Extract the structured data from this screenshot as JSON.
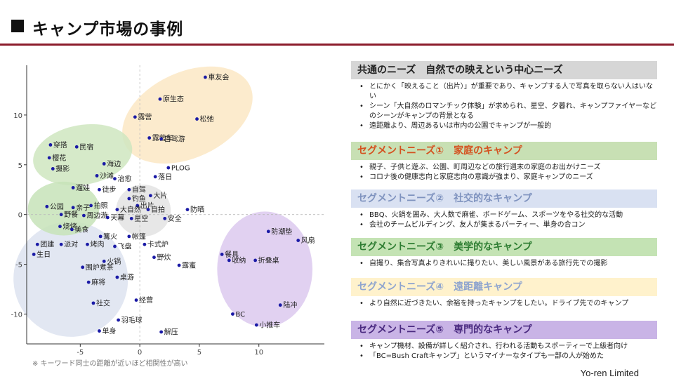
{
  "title": "キャンプ市場の事例",
  "note": "※ キーワード同士の距離が近いほど相関性が高い",
  "footer": "Yo-ren Limited",
  "colors": {
    "accent": "#8b1c2c",
    "dot": "#1a1aa6"
  },
  "chart_data": {
    "type": "scatter",
    "xlim": [
      -9.5,
      15.5
    ],
    "ylim": [
      -13,
      15
    ],
    "x_ticks": [
      -5,
      0,
      5,
      10
    ],
    "y_ticks": [
      10,
      5,
      0,
      -5,
      -10
    ],
    "clusters": [
      {
        "name": "common",
        "color": "#fbe8c4",
        "cx": 4,
        "cy": 10,
        "rx": 5.8,
        "ry": 4.3,
        "rot": -25
      },
      {
        "name": "segment1",
        "color": "#cfe6bf",
        "cx": -4.8,
        "cy": 6,
        "rx": 4.2,
        "ry": 3,
        "rot": -10
      },
      {
        "name": "segment2",
        "color": "#dde3f0",
        "cx": -5.8,
        "cy": -6.5,
        "rx": 4.8,
        "ry": 5.8,
        "rot": -25
      },
      {
        "name": "segment3",
        "color": "#c7e3b9",
        "cx": -6.4,
        "cy": 0.6,
        "rx": 3,
        "ry": 2.7,
        "rot": 0
      },
      {
        "name": "segment4",
        "color": "#e3e3e3",
        "cx": 0.3,
        "cy": 0.4,
        "rx": 2.3,
        "ry": 2.6,
        "rot": 0
      },
      {
        "name": "segment5",
        "color": "#dcc9ee",
        "cx": 10.5,
        "cy": -5.5,
        "rx": 4,
        "ry": 5.8,
        "rot": 0
      }
    ],
    "points": [
      {
        "label": "車友会",
        "x": 5.5,
        "y": 13.8
      },
      {
        "label": "原生态",
        "x": 1.7,
        "y": 11.6
      },
      {
        "label": "松弛",
        "x": 4.8,
        "y": 9.6
      },
      {
        "label": "露营",
        "x": -0.4,
        "y": 9.8
      },
      {
        "label": "露营车",
        "x": 0.8,
        "y": 7.7
      },
      {
        "label": "自驾游",
        "x": 1.8,
        "y": 7.6
      },
      {
        "label": "穿搭",
        "x": -7.5,
        "y": 7
      },
      {
        "label": "民宿",
        "x": -5.3,
        "y": 6.8
      },
      {
        "label": "樱花",
        "x": -7.6,
        "y": 5.7
      },
      {
        "label": "海边",
        "x": -3,
        "y": 5.1
      },
      {
        "label": "摄影",
        "x": -7.3,
        "y": 4.6
      },
      {
        "label": "沙滩",
        "x": -3.6,
        "y": 3.9
      },
      {
        "label": "PLOG",
        "x": 2.4,
        "y": 4.7
      },
      {
        "label": "落日",
        "x": 1.3,
        "y": 3.8
      },
      {
        "label": "治愈",
        "x": -2.1,
        "y": 3.6
      },
      {
        "label": "遛娃",
        "x": -5.6,
        "y": 2.7
      },
      {
        "label": "徒步",
        "x": -3.4,
        "y": 2.5
      },
      {
        "label": "自驾",
        "x": -0.9,
        "y": 2.5
      },
      {
        "label": "钓鱼",
        "x": -0.9,
        "y": 1.6
      },
      {
        "label": "大片",
        "x": 0.9,
        "y": 1.9
      },
      {
        "label": "公园",
        "x": -7.8,
        "y": 0.8
      },
      {
        "label": "亲子",
        "x": -5.6,
        "y": 0.7
      },
      {
        "label": "拍照",
        "x": -4.1,
        "y": 0.9
      },
      {
        "label": "出片",
        "x": -0.2,
        "y": 0.9
      },
      {
        "label": "自拍",
        "x": 0.7,
        "y": 0.5
      },
      {
        "label": "大自然",
        "x": -1.9,
        "y": 0.5
      },
      {
        "label": "防晒",
        "x": 4,
        "y": 0.5
      },
      {
        "label": "野餐",
        "x": -6.6,
        "y": 0
      },
      {
        "label": "周边游",
        "x": -4.7,
        "y": -0.1
      },
      {
        "label": "天幕",
        "x": -2.7,
        "y": -0.3
      },
      {
        "label": "星空",
        "x": -0.7,
        "y": -0.4
      },
      {
        "label": "安全",
        "x": 2.1,
        "y": -0.4
      },
      {
        "label": "烧烤",
        "x": -6.7,
        "y": -1.2
      },
      {
        "label": "美食",
        "x": -5.7,
        "y": -1.5
      },
      {
        "label": "篝火",
        "x": -3.3,
        "y": -2.2
      },
      {
        "label": "帐篷",
        "x": -0.9,
        "y": -2.2
      },
      {
        "label": "防潮垫",
        "x": 10.8,
        "y": -1.7
      },
      {
        "label": "团建",
        "x": -8.6,
        "y": -3
      },
      {
        "label": "派对",
        "x": -6.6,
        "y": -3
      },
      {
        "label": "烤肉",
        "x": -4.4,
        "y": -3
      },
      {
        "label": "飞盘",
        "x": -2.1,
        "y": -3.2
      },
      {
        "label": "卡式炉",
        "x": 0.4,
        "y": -3
      },
      {
        "label": "风扇",
        "x": 13.3,
        "y": -2.6
      },
      {
        "label": "生日",
        "x": -8.9,
        "y": -4
      },
      {
        "label": "餐具",
        "x": 6.9,
        "y": -4
      },
      {
        "label": "野炊",
        "x": 1.2,
        "y": -4.3
      },
      {
        "label": "收纳",
        "x": 7.5,
        "y": -4.6
      },
      {
        "label": "折叠桌",
        "x": 9.7,
        "y": -4.6
      },
      {
        "label": "火锅",
        "x": -3,
        "y": -4.7
      },
      {
        "label": "围炉煮茶",
        "x": -4.8,
        "y": -5.3
      },
      {
        "label": "露蜜",
        "x": 3.3,
        "y": -5.1
      },
      {
        "label": "桌游",
        "x": -1.9,
        "y": -6.3
      },
      {
        "label": "麻将",
        "x": -4.3,
        "y": -6.8
      },
      {
        "label": "社交",
        "x": -3.9,
        "y": -8.9
      },
      {
        "label": "经营",
        "x": -0.3,
        "y": -8.6
      },
      {
        "label": "陆冲",
        "x": 11.8,
        "y": -9.1
      },
      {
        "label": "BC",
        "x": 7.8,
        "y": -10
      },
      {
        "label": "羽毛球",
        "x": -1.8,
        "y": -10.6
      },
      {
        "label": "小推车",
        "x": 9.8,
        "y": -11.1
      },
      {
        "label": "单身",
        "x": -3.4,
        "y": -11.7
      },
      {
        "label": "解压",
        "x": 1.8,
        "y": -11.8
      }
    ]
  },
  "panel": {
    "sections": [
      {
        "heading": "共通のニーズ　自然での映えという中心ニーズ",
        "bullets": [
          "とにかく「映えること（出片）」が重要であり、キャンプする人で写真を取らない人はいない",
          "シーン「大自然のロマンチック体験」が求められ、星空、夕暮れ、キャンプファイヤーなどのシーンがキャンプの背景となる",
          "遠距離より、周辺あるいは市内の公園でキャンプが一般的"
        ]
      },
      {
        "heading": "セグメントニーズ①　家庭のキャンプ",
        "bullets": [
          "親子、子供と遊ぶ、公園、町周辺などの旅行週末の家庭のお出かけニーズ",
          "コロナ後の健康志向と家庭志向の意識が強まり、家庭キャンプのニーズ"
        ]
      },
      {
        "heading": "セグメントニーズ②　社交的なキャンプ",
        "bullets": [
          "BBQ、火鍋を囲み、大人数で麻雀、ボードゲーム、スポーツをやる社交的な活動",
          "会社のチームビルディング、友人が集まるパーティー、単身の合コン"
        ]
      },
      {
        "heading": "セグメントニーズ③　美学的なキャンプ",
        "bullets": [
          "自撮り、集合写真よりきれいに撮りたい、美しい風景がある旅行先での撮影"
        ]
      },
      {
        "heading": "セグメントニーズ④　遠距離キャンプ",
        "bullets": [
          "より自然に近づきたい、余裕を持ったキャンプをしたい。ドライブ先でのキャンプ"
        ]
      },
      {
        "heading": "セグメントニーズ⑤　専門的なキャンプ",
        "bullets": [
          "キャンプ機材、設備が詳しく紹介され、行われる活動もスポーティーで上級者向け",
          "「BC=Bush Craftキャンプ」というマイナーなタイプも一部の人が始めた"
        ]
      }
    ]
  }
}
